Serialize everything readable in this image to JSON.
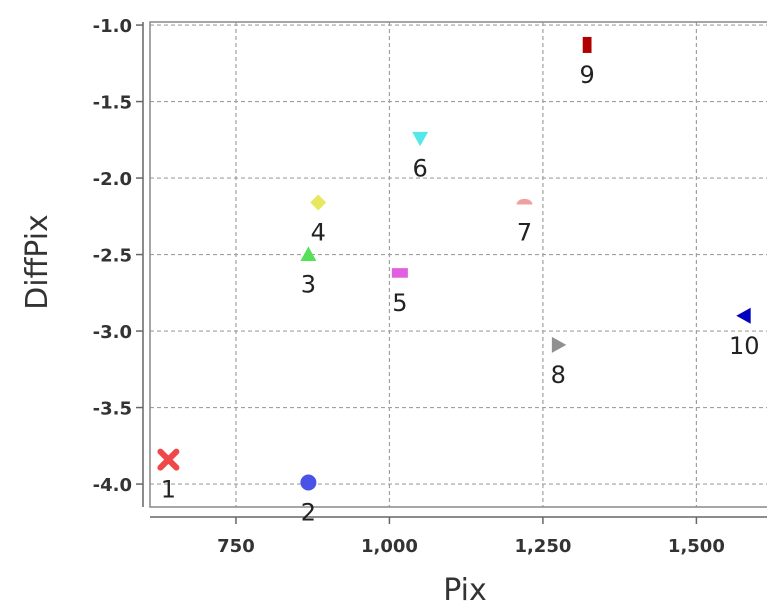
{
  "chart_data": {
    "type": "scatter",
    "xlabel": "Pix",
    "ylabel": "DiffPix",
    "xlim": [
      610,
      1615
    ],
    "ylim": [
      -4.15,
      -0.98
    ],
    "grid": true,
    "x_ticks": [
      {
        "value": 750,
        "label": "750"
      },
      {
        "value": 1000,
        "label": "1,000"
      },
      {
        "value": 1250,
        "label": "1,250"
      },
      {
        "value": 1500,
        "label": "1,500"
      }
    ],
    "y_ticks": [
      {
        "value": -1.0,
        "label": "-1.0"
      },
      {
        "value": -1.5,
        "label": "-1.5"
      },
      {
        "value": -2.0,
        "label": "-2.0"
      },
      {
        "value": -2.5,
        "label": "-2.5"
      },
      {
        "value": -3.0,
        "label": "-3.0"
      },
      {
        "value": -3.5,
        "label": "-3.5"
      },
      {
        "value": -4.0,
        "label": "-4.0"
      }
    ],
    "points": [
      {
        "label": "1",
        "x": 640,
        "y": -3.84,
        "marker": "x",
        "color": "#f04848"
      },
      {
        "label": "2",
        "x": 868,
        "y": -3.99,
        "marker": "circle",
        "color": "#4a52e8"
      },
      {
        "label": "3",
        "x": 868,
        "y": -2.5,
        "marker": "triangle-up",
        "color": "#55e055"
      },
      {
        "label": "4",
        "x": 884,
        "y": -2.16,
        "marker": "diamond",
        "color": "#e8e860"
      },
      {
        "label": "5",
        "x": 1017,
        "y": -2.62,
        "marker": "square",
        "color": "#e060e0"
      },
      {
        "label": "6",
        "x": 1050,
        "y": -1.74,
        "marker": "triangle-down",
        "color": "#55e8e8"
      },
      {
        "label": "7",
        "x": 1220,
        "y": -2.16,
        "marker": "half-circle",
        "color": "#f0a0a0"
      },
      {
        "label": "8",
        "x": 1275,
        "y": -3.09,
        "marker": "triangle-right",
        "color": "#909090"
      },
      {
        "label": "9",
        "x": 1322,
        "y": -1.13,
        "marker": "rect-tall",
        "color": "#b00000"
      },
      {
        "label": "10",
        "x": 1578,
        "y": -2.9,
        "marker": "triangle-left",
        "color": "#0000c0"
      }
    ]
  }
}
